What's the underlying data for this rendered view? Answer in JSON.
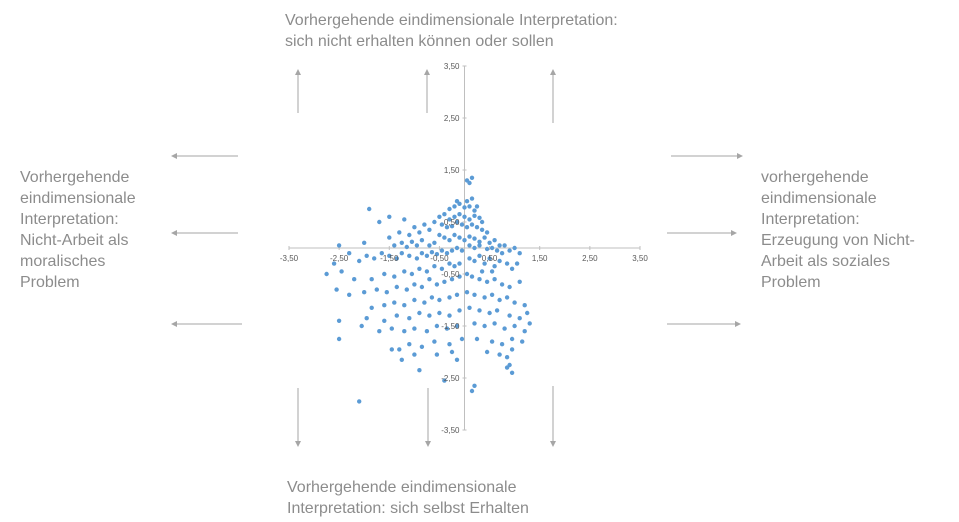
{
  "labels": {
    "top": [
      "Vorhergehende eindimensionale Interpretation:",
      "sich nicht erhalten können oder sollen"
    ],
    "left": [
      "Vorhergehende",
      "eindimensionale",
      "Interpretation:",
      "Nicht-Arbeit als",
      "moralisches",
      "Problem"
    ],
    "right": [
      "vorhergehende",
      "eindimensionale",
      "Interpretation:",
      "Erzeugung von Nicht-",
      "Arbeit als soziales",
      "Problem"
    ],
    "bottom": [
      "Vorhergehende eindimensionale",
      "Interpretation: sich selbst Erhalten"
    ]
  },
  "colors": {
    "points": "#5b9bd5",
    "axis": "#bfbfbf",
    "arrows": "#a6a6a6",
    "text": "#8c8c8c"
  },
  "chart_data": {
    "type": "scatter",
    "xlim": [
      -3.5,
      3.5
    ],
    "ylim": [
      -3.5,
      3.5
    ],
    "x_ticks": [
      "-3,50",
      "-2,50",
      "-1,50",
      "-0,50",
      "0,50",
      "1,50",
      "2,50",
      "3,50"
    ],
    "y_ticks": [
      "3,50",
      "2,50",
      "1,50",
      "0,50",
      "-0,50",
      "-1,50",
      "-2,50",
      "-3,50"
    ],
    "grid": false,
    "points": [
      [
        0.05,
        1.3
      ],
      [
        0.15,
        1.35
      ],
      [
        0.1,
        1.25
      ],
      [
        -0.3,
        0.75
      ],
      [
        -0.2,
        0.8
      ],
      [
        -0.1,
        0.85
      ],
      [
        0.0,
        0.78
      ],
      [
        0.1,
        0.8
      ],
      [
        0.2,
        0.72
      ],
      [
        0.25,
        0.8
      ],
      [
        0.05,
        0.9
      ],
      [
        -0.15,
        0.9
      ],
      [
        0.15,
        0.95
      ],
      [
        -0.5,
        0.6
      ],
      [
        -0.4,
        0.65
      ],
      [
        -0.3,
        0.55
      ],
      [
        -0.2,
        0.6
      ],
      [
        -0.1,
        0.65
      ],
      [
        0.0,
        0.6
      ],
      [
        0.1,
        0.55
      ],
      [
        0.2,
        0.62
      ],
      [
        0.3,
        0.58
      ],
      [
        0.35,
        0.5
      ],
      [
        -0.6,
        0.5
      ],
      [
        -0.45,
        0.45
      ],
      [
        -0.35,
        0.4
      ],
      [
        -0.25,
        0.42
      ],
      [
        -0.15,
        0.5
      ],
      [
        -0.05,
        0.45
      ],
      [
        0.05,
        0.4
      ],
      [
        0.15,
        0.45
      ],
      [
        0.25,
        0.4
      ],
      [
        0.35,
        0.35
      ],
      [
        0.45,
        0.3
      ],
      [
        -0.7,
        0.35
      ],
      [
        -0.8,
        0.45
      ],
      [
        -0.9,
        0.3
      ],
      [
        -1.0,
        0.4
      ],
      [
        -1.1,
        0.25
      ],
      [
        -1.3,
        0.3
      ],
      [
        -1.5,
        0.2
      ],
      [
        -1.7,
        0.5
      ],
      [
        -1.9,
        0.75
      ],
      [
        -1.5,
        0.6
      ],
      [
        -1.2,
        0.55
      ],
      [
        -0.5,
        0.25
      ],
      [
        -0.4,
        0.2
      ],
      [
        -0.3,
        0.15
      ],
      [
        -0.2,
        0.25
      ],
      [
        -0.1,
        0.2
      ],
      [
        0.0,
        0.15
      ],
      [
        0.1,
        0.22
      ],
      [
        0.2,
        0.18
      ],
      [
        0.3,
        0.12
      ],
      [
        0.4,
        0.2
      ],
      [
        0.5,
        0.1
      ],
      [
        0.6,
        0.15
      ],
      [
        0.7,
        0.05
      ],
      [
        -0.6,
        0.1
      ],
      [
        -0.7,
        0.05
      ],
      [
        -0.85,
        0.15
      ],
      [
        -0.95,
        0.05
      ],
      [
        -1.05,
        0.12
      ],
      [
        -1.15,
        0.02
      ],
      [
        -1.25,
        0.1
      ],
      [
        -1.4,
        0.05
      ],
      [
        0.1,
        0.05
      ],
      [
        0.2,
        0.0
      ],
      [
        0.3,
        0.05
      ],
      [
        0.45,
        -0.02
      ],
      [
        0.55,
        0.0
      ],
      [
        0.65,
        -0.05
      ],
      [
        0.8,
        0.05
      ],
      [
        0.9,
        -0.05
      ],
      [
        1.0,
        0.0
      ],
      [
        1.1,
        -0.1
      ],
      [
        0.75,
        -0.1
      ],
      [
        -0.05,
        -0.05
      ],
      [
        -0.15,
        0.0
      ],
      [
        -0.25,
        -0.05
      ],
      [
        -0.35,
        -0.1
      ],
      [
        -0.45,
        -0.05
      ],
      [
        -0.55,
        -0.12
      ],
      [
        -0.65,
        -0.08
      ],
      [
        -0.75,
        -0.15
      ],
      [
        -0.85,
        -0.1
      ],
      [
        -0.95,
        -0.2
      ],
      [
        -1.1,
        -0.15
      ],
      [
        -1.25,
        -0.1
      ],
      [
        -1.35,
        -0.2
      ],
      [
        -1.5,
        -0.15
      ],
      [
        -1.65,
        -0.1
      ],
      [
        -1.8,
        -0.2
      ],
      [
        -1.95,
        -0.15
      ],
      [
        -2.1,
        -0.25
      ],
      [
        -2.3,
        -0.1
      ],
      [
        -2.6,
        -0.3
      ],
      [
        -2.5,
        0.05
      ],
      [
        -2.75,
        -0.5
      ],
      [
        -2.0,
        0.1
      ],
      [
        0.1,
        -0.2
      ],
      [
        0.2,
        -0.25
      ],
      [
        0.3,
        -0.15
      ],
      [
        0.4,
        -0.3
      ],
      [
        0.5,
        -0.2
      ],
      [
        0.6,
        -0.35
      ],
      [
        0.7,
        -0.25
      ],
      [
        0.85,
        -0.3
      ],
      [
        0.95,
        -0.4
      ],
      [
        1.05,
        -0.3
      ],
      [
        0.55,
        -0.45
      ],
      [
        -0.1,
        -0.3
      ],
      [
        -0.2,
        -0.35
      ],
      [
        -0.3,
        -0.3
      ],
      [
        -0.45,
        -0.4
      ],
      [
        -0.6,
        -0.35
      ],
      [
        -0.75,
        -0.45
      ],
      [
        -0.9,
        -0.4
      ],
      [
        -1.05,
        -0.5
      ],
      [
        -1.2,
        -0.45
      ],
      [
        -1.4,
        -0.55
      ],
      [
        -1.6,
        -0.5
      ],
      [
        -1.85,
        -0.6
      ],
      [
        -2.2,
        -0.6
      ],
      [
        -2.45,
        -0.45
      ],
      [
        0.05,
        -0.5
      ],
      [
        0.15,
        -0.55
      ],
      [
        0.3,
        -0.6
      ],
      [
        0.45,
        -0.65
      ],
      [
        0.6,
        -0.6
      ],
      [
        0.75,
        -0.7
      ],
      [
        0.9,
        -0.75
      ],
      [
        1.1,
        -0.65
      ],
      [
        0.35,
        -0.45
      ],
      [
        -0.1,
        -0.55
      ],
      [
        -0.25,
        -0.6
      ],
      [
        -0.4,
        -0.65
      ],
      [
        -0.55,
        -0.7
      ],
      [
        -0.7,
        -0.6
      ],
      [
        -0.85,
        -0.75
      ],
      [
        -1.0,
        -0.7
      ],
      [
        -1.15,
        -0.8
      ],
      [
        -1.35,
        -0.75
      ],
      [
        -1.55,
        -0.85
      ],
      [
        -1.75,
        -0.8
      ],
      [
        -2.0,
        -0.85
      ],
      [
        -2.3,
        -0.9
      ],
      [
        -2.55,
        -0.8
      ],
      [
        0.05,
        -0.85
      ],
      [
        0.2,
        -0.9
      ],
      [
        0.4,
        -0.95
      ],
      [
        0.55,
        -0.9
      ],
      [
        0.7,
        -1.0
      ],
      [
        0.85,
        -0.95
      ],
      [
        1.0,
        -1.05
      ],
      [
        1.2,
        -1.1
      ],
      [
        -0.15,
        -0.9
      ],
      [
        -0.3,
        -0.95
      ],
      [
        -0.5,
        -1.0
      ],
      [
        -0.65,
        -0.95
      ],
      [
        -0.8,
        -1.05
      ],
      [
        -1.0,
        -1.0
      ],
      [
        -1.2,
        -1.1
      ],
      [
        -1.4,
        -1.05
      ],
      [
        -1.6,
        -1.1
      ],
      [
        -1.85,
        -1.15
      ],
      [
        0.1,
        -1.15
      ],
      [
        0.3,
        -1.2
      ],
      [
        0.5,
        -1.25
      ],
      [
        0.65,
        -1.2
      ],
      [
        0.9,
        -1.3
      ],
      [
        1.1,
        -1.35
      ],
      [
        1.25,
        -1.25
      ],
      [
        -0.1,
        -1.2
      ],
      [
        -0.3,
        -1.3
      ],
      [
        -0.5,
        -1.25
      ],
      [
        -0.7,
        -1.3
      ],
      [
        -0.9,
        -1.25
      ],
      [
        -1.1,
        -1.35
      ],
      [
        -1.35,
        -1.3
      ],
      [
        -1.6,
        -1.4
      ],
      [
        -1.95,
        -1.35
      ],
      [
        0.2,
        -1.45
      ],
      [
        0.4,
        -1.5
      ],
      [
        0.6,
        -1.45
      ],
      [
        0.8,
        -1.55
      ],
      [
        1.0,
        -1.5
      ],
      [
        1.2,
        -1.6
      ],
      [
        1.3,
        -1.45
      ],
      [
        -0.15,
        -1.5
      ],
      [
        -0.35,
        -1.55
      ],
      [
        -0.55,
        -1.5
      ],
      [
        -0.75,
        -1.6
      ],
      [
        -1.0,
        -1.55
      ],
      [
        -1.2,
        -1.6
      ],
      [
        -1.45,
        -1.55
      ],
      [
        -1.7,
        -1.6
      ],
      [
        -2.05,
        -1.5
      ],
      [
        -2.5,
        -1.4
      ],
      [
        0.25,
        -1.75
      ],
      [
        0.55,
        -1.8
      ],
      [
        0.75,
        -1.85
      ],
      [
        0.95,
        -1.75
      ],
      [
        1.15,
        -1.8
      ],
      [
        -0.05,
        -1.75
      ],
      [
        -0.3,
        -1.85
      ],
      [
        -0.6,
        -1.8
      ],
      [
        -0.85,
        -1.9
      ],
      [
        -1.1,
        -1.85
      ],
      [
        -1.45,
        -1.95
      ],
      [
        -2.5,
        -1.75
      ],
      [
        0.45,
        -2.0
      ],
      [
        0.7,
        -2.05
      ],
      [
        0.95,
        -1.95
      ],
      [
        0.85,
        -2.1
      ],
      [
        -0.25,
        -2.0
      ],
      [
        -0.55,
        -2.05
      ],
      [
        -0.15,
        -2.15
      ],
      [
        -1.0,
        -2.05
      ],
      [
        -1.25,
        -2.15
      ],
      [
        -1.3,
        -1.95
      ],
      [
        0.85,
        -2.3
      ],
      [
        0.95,
        -2.4
      ],
      [
        0.9,
        -2.25
      ],
      [
        -0.9,
        -2.35
      ],
      [
        -0.4,
        -2.55
      ],
      [
        0.2,
        -2.65
      ],
      [
        0.15,
        -2.75
      ],
      [
        -2.1,
        -2.95
      ]
    ]
  }
}
